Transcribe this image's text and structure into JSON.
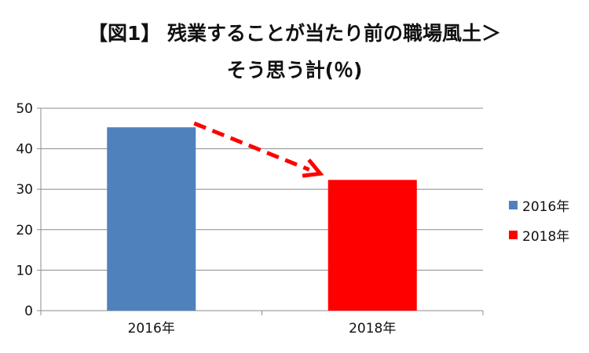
{
  "title_line1": "【図1】 残業することが当たり前の職場風土＞",
  "title_line2": "そう思う計(％)",
  "chart_data": {
    "type": "bar",
    "categories": [
      "2016年",
      "2018年"
    ],
    "values": [
      45.3,
      32.3
    ],
    "colors": [
      "#4f81bd",
      "#ff0000"
    ],
    "ylim": [
      0,
      50
    ],
    "yticks": [
      "0",
      "10",
      "20",
      "30",
      "40",
      "50"
    ],
    "grid": true,
    "legend": {
      "position": "right",
      "entries": [
        {
          "label": "2016年",
          "color": "#4f81bd"
        },
        {
          "label": "2018年",
          "color": "#ff0000"
        }
      ]
    },
    "annotation": {
      "type": "dashed-arrow",
      "color": "#ff0000",
      "from": "2016年",
      "to": "2018年"
    }
  }
}
